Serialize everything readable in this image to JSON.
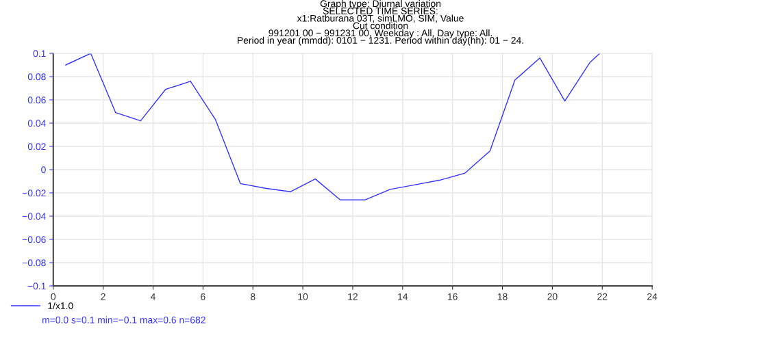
{
  "chart_data": {
    "type": "line",
    "title": "Graph type: Diurnal variation\nSELECTED TIME SERIES:\nx1:Ratburana 03T, simLMO, SIM, Value\nCut condition\n991201 00 − 991231 00, Weekday : All, Day type: All.\nPeriod in year (mmdd): 0101 − 1231. Period within day(hh): 01 − 24.",
    "series": [
      {
        "name": "1/x1.0",
        "color": "#3333ff",
        "x": [
          0.5,
          1.5,
          2.5,
          3.5,
          4.5,
          5.5,
          6.5,
          7.5,
          8.5,
          9.5,
          10.5,
          11.5,
          12.5,
          13.5,
          14.5,
          15.5,
          16.5,
          17.5,
          18.5,
          19.5,
          20.5,
          21.5,
          21.9
        ],
        "values": [
          0.09,
          0.1,
          0.049,
          0.042,
          0.069,
          0.076,
          0.043,
          -0.012,
          -0.016,
          -0.019,
          -0.008,
          -0.026,
          -0.026,
          -0.017,
          -0.013,
          -0.009,
          -0.003,
          0.016,
          0.077,
          0.096,
          0.059,
          0.092,
          0.1
        ]
      }
    ],
    "annotations": [
      "m=0.0 s=0.1 min=−0.1 max=0.6 n=682"
    ],
    "xlim": [
      0,
      24
    ],
    "xticks": [
      0,
      2,
      4,
      6,
      8,
      10,
      12,
      14,
      16,
      18,
      20,
      22,
      24
    ],
    "ylim": [
      -0.1,
      0.1
    ],
    "yticks": [
      {
        "value": -0.1,
        "label": "−0.1"
      },
      {
        "value": -0.08,
        "label": "−0.08"
      },
      {
        "value": -0.06,
        "label": "−0.06"
      },
      {
        "value": -0.04,
        "label": "−0.04"
      },
      {
        "value": -0.02,
        "label": "−0.02"
      },
      0,
      0.02,
      0.04,
      0.06,
      0.08,
      0.1
    ],
    "grid": true,
    "legend": "bottom left",
    "marker": "none",
    "line_style": "solid"
  }
}
